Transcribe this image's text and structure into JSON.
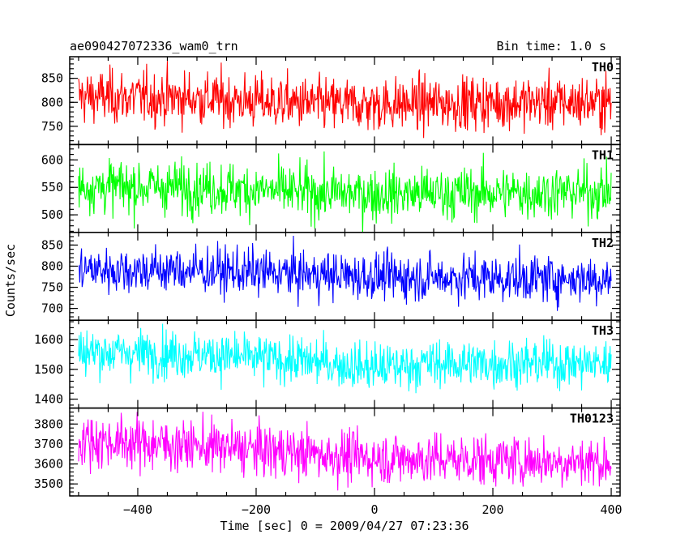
{
  "header": {
    "title": "ae090427072336_wam0_trn",
    "bin_time": "Bin time: 1.0 s"
  },
  "chart_data": {
    "type": "line",
    "xlabel": "Time [sec] 0 = 2009/04/27 07:23:36",
    "ylabel": "Counts/sec",
    "xlim": [
      -515,
      415
    ],
    "x_ticks": [
      -400,
      -200,
      0,
      200,
      400
    ],
    "x_tick_labels": [
      "−400",
      "−200",
      "0",
      "200",
      "400"
    ],
    "x_range": [
      -500,
      400
    ],
    "series": [
      {
        "name": "TH0",
        "color": "#ff0000",
        "ylim": [
          712,
          895
        ],
        "y_ticks": [
          750,
          800,
          850
        ],
        "y_tick_labels": [
          "750",
          "800",
          "850"
        ],
        "trend": [
          [
            -500,
            812
          ],
          [
            -300,
            808
          ],
          [
            -100,
            796
          ],
          [
            0,
            795
          ],
          [
            200,
            800
          ],
          [
            400,
            800
          ]
        ],
        "noise": 28
      },
      {
        "name": "TH1",
        "color": "#00ff00",
        "ylim": [
          468,
          628
        ],
        "y_ticks": [
          500,
          550,
          600
        ],
        "y_tick_labels": [
          "500",
          "550",
          "600"
        ],
        "trend": [
          [
            -500,
            552
          ],
          [
            -300,
            550
          ],
          [
            -100,
            540
          ],
          [
            0,
            538
          ],
          [
            200,
            540
          ],
          [
            400,
            542
          ]
        ],
        "noise": 24
      },
      {
        "name": "TH2",
        "color": "#0000ff",
        "ylim": [
          672,
          880
        ],
        "y_ticks": [
          700,
          750,
          800,
          850
        ],
        "y_tick_labels": [
          "700",
          "750",
          "800",
          "850"
        ],
        "trend": [
          [
            -500,
            792
          ],
          [
            -300,
            790
          ],
          [
            -100,
            780
          ],
          [
            0,
            775
          ],
          [
            200,
            772
          ],
          [
            400,
            770
          ]
        ],
        "noise": 28
      },
      {
        "name": "TH3",
        "color": "#00ffff",
        "ylim": [
          1370,
          1665
        ],
        "y_ticks": [
          1400,
          1500,
          1600
        ],
        "y_tick_labels": [
          "1400",
          "1500",
          "1600"
        ],
        "trend": [
          [
            -500,
            1560
          ],
          [
            -300,
            1550
          ],
          [
            -100,
            1525
          ],
          [
            0,
            1505
          ],
          [
            100,
            1520
          ],
          [
            400,
            1520
          ]
        ],
        "noise": 40
      },
      {
        "name": "TH0123",
        "color": "#ff00ff",
        "ylim": [
          3440,
          3880
        ],
        "y_ticks": [
          3500,
          3600,
          3700,
          3800
        ],
        "y_tick_labels": [
          "3500",
          "3600",
          "3700",
          "3800"
        ],
        "trend": [
          [
            -500,
            3720
          ],
          [
            -300,
            3690
          ],
          [
            -100,
            3650
          ],
          [
            0,
            3630
          ],
          [
            200,
            3620
          ],
          [
            400,
            3610
          ]
        ],
        "noise": 65
      }
    ]
  }
}
